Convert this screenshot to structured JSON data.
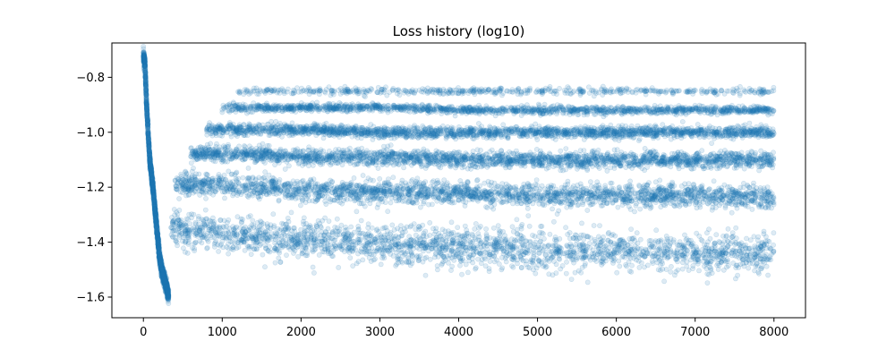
{
  "chart_data": {
    "type": "scatter",
    "title": "Loss history (log10)",
    "xlabel": "",
    "ylabel": "",
    "xlim": [
      -400,
      8400
    ],
    "ylim": [
      -1.675,
      -0.675
    ],
    "xticks": [
      0,
      1000,
      2000,
      3000,
      4000,
      5000,
      6000,
      7000,
      8000
    ],
    "xtick_labels": [
      "0",
      "1000",
      "2000",
      "3000",
      "4000",
      "5000",
      "6000",
      "7000",
      "8000"
    ],
    "yticks": [
      -1.6,
      -1.4,
      -1.2,
      -1.0,
      -0.8
    ],
    "ytick_labels": [
      "−1.6",
      "−1.4",
      "−1.2",
      "−1.0",
      "−0.8"
    ],
    "grid": false,
    "legend": "none",
    "marker_color": "#1f77b4",
    "marker_alpha": 0.15,
    "series": [
      {
        "x": [
          0,
          20,
          40,
          60,
          80,
          100,
          120,
          140,
          160,
          180,
          200,
          220,
          240,
          260,
          280,
          300,
          320
        ],
        "y": [
          -0.72,
          -0.75,
          -0.9,
          -1.0,
          -1.1,
          -1.15,
          -1.2,
          -1.26,
          -1.32,
          -1.38,
          -1.44,
          -1.48,
          -1.51,
          -1.53,
          -1.55,
          -1.57,
          -1.6
        ]
      },
      {
        "x": [
          350,
          500,
          750,
          1000,
          1500,
          2000,
          3000,
          4000,
          5000,
          6000,
          7000,
          8000
        ],
        "y": [
          -1.33,
          -1.36,
          -1.36,
          -1.37,
          -1.38,
          -1.39,
          -1.41,
          -1.42,
          -1.43,
          -1.43,
          -1.44,
          -1.44
        ]
      },
      {
        "x": [
          400,
          750,
          1000,
          1500,
          2000,
          3000,
          4000,
          5000,
          6000,
          7000,
          8000
        ],
        "y": [
          -1.19,
          -1.19,
          -1.19,
          -1.2,
          -1.21,
          -1.22,
          -1.22,
          -1.23,
          -1.23,
          -1.23,
          -1.24
        ]
      },
      {
        "x": [
          600,
          1000,
          1500,
          2000,
          3000,
          4000,
          5000,
          6000,
          7000,
          8000
        ],
        "y": [
          -1.08,
          -1.08,
          -1.08,
          -1.09,
          -1.09,
          -1.1,
          -1.1,
          -1.1,
          -1.1,
          -1.1
        ]
      },
      {
        "x": [
          800,
          1000,
          1500,
          2000,
          3000,
          4000,
          5000,
          6000,
          7000,
          8000
        ],
        "y": [
          -0.99,
          -0.99,
          -0.99,
          -0.99,
          -1.0,
          -1.0,
          -1.0,
          -1.0,
          -1.0,
          -1.0
        ]
      },
      {
        "x": [
          1000,
          1500,
          2000,
          3000,
          4000,
          5000,
          6000,
          7000,
          8000
        ],
        "y": [
          -0.91,
          -0.91,
          -0.91,
          -0.91,
          -0.92,
          -0.92,
          -0.92,
          -0.92,
          -0.92
        ]
      },
      {
        "x": [
          1200,
          2000,
          3000,
          4000,
          5000,
          6000,
          7000,
          8000
        ],
        "y": [
          -0.85,
          -0.85,
          -0.85,
          -0.85,
          -0.85,
          -0.85,
          -0.85,
          -0.85
        ]
      }
    ]
  }
}
